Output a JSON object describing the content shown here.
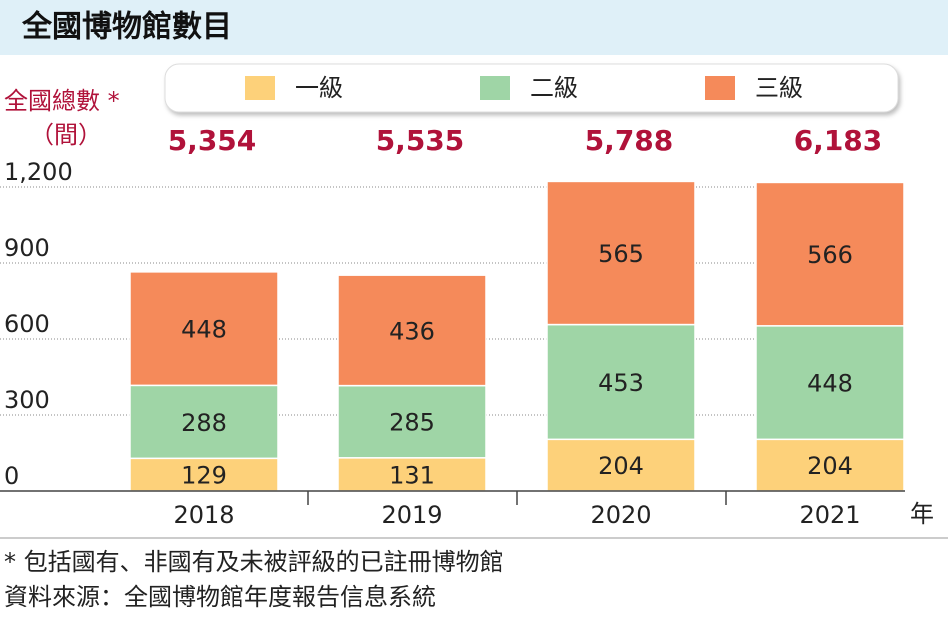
{
  "chart_data": {
    "type": "stacked_bar",
    "title": "全國博物館數目",
    "y_label": "全國總數 *",
    "y_unit": "（間）",
    "x_unit": "年",
    "categories": [
      "2018",
      "2019",
      "2020",
      "2021"
    ],
    "series": [
      {
        "name": "一級",
        "color": "#fdd17a",
        "values": [
          129,
          131,
          204,
          204
        ]
      },
      {
        "name": "二級",
        "color": "#9fd5a6",
        "values": [
          288,
          285,
          453,
          448
        ]
      },
      {
        "name": "三級",
        "color": "#f58a5a",
        "values": [
          448,
          436,
          565,
          566
        ]
      }
    ],
    "totals": {
      "values": [
        5354,
        5535,
        5788,
        6183
      ],
      "value_labels": [
        "5,354",
        "5,535",
        "5,788",
        "6,183"
      ],
      "color": "#b0123a"
    },
    "ylim": [
      0,
      1200
    ],
    "yticks": [
      0,
      300,
      600,
      900,
      {
        "value": 1200,
        "label": "1,200"
      }
    ],
    "grid": true,
    "notes": [
      "* 包括國有、非國有及未被評級的已註冊博物館",
      "資料來源：全國博物館年度報告信息系統"
    ]
  }
}
